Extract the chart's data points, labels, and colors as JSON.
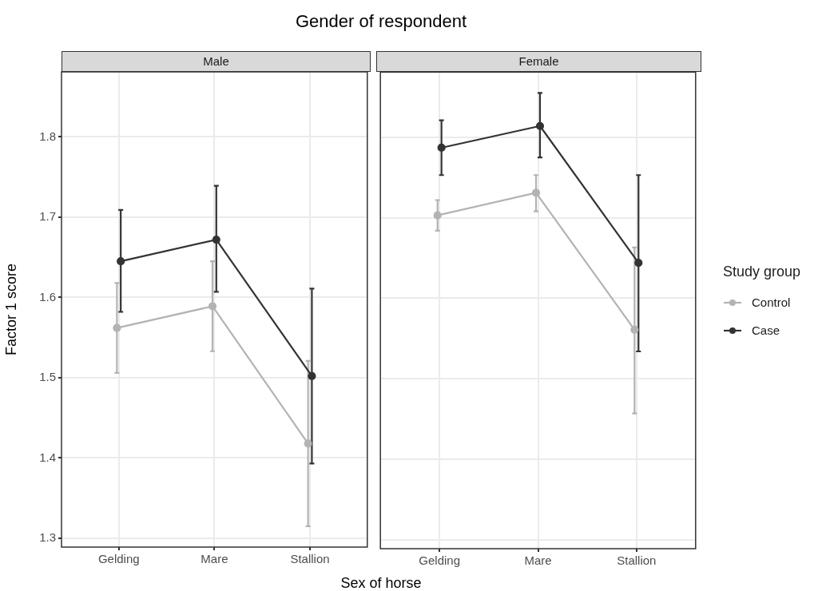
{
  "chart_data": [
    {
      "type": "line",
      "title": "Male",
      "annotations": [
        "Gender of respondent"
      ],
      "xlabel": "Sex of horse",
      "ylabel": "Factor 1 score",
      "categories": [
        "Gelding",
        "Mare",
        "Stallion"
      ],
      "series": [
        {
          "color": "#b3b3b3",
          "values": [
            1.562,
            1.589,
            1.418
          ],
          "errors": [
            [
              1.506,
              1.618
            ],
            [
              1.533,
              1.645
            ],
            [
              1.315,
              1.521
            ]
          ]
        },
        {
          "color": "#333333",
          "values": [
            1.645,
            1.672,
            1.502
          ],
          "errors": [
            [
              1.582,
              1.709
            ],
            [
              1.607,
              1.739
            ],
            [
              1.393,
              1.611
            ]
          ]
        }
      ],
      "ylim": [
        1.289,
        1.881
      ],
      "yticks": [
        1.3,
        1.4,
        1.5,
        1.6,
        1.7,
        1.8
      ],
      "grid": true,
      "marker": "circle",
      "line_style": "solid",
      "legend": false
    },
    {
      "type": "line",
      "title": "Female",
      "legend_title": "Study group",
      "categories": [
        "Gelding",
        "Mare",
        "Stallion"
      ],
      "series": [
        {
          "name": "Control",
          "color": "#b3b3b3",
          "values": [
            1.703,
            1.731,
            1.561
          ],
          "errors": [
            [
              1.684,
              1.722
            ],
            [
              1.708,
              1.753
            ],
            [
              1.457,
              1.663
            ]
          ]
        },
        {
          "name": "Case",
          "color": "#333333",
          "values": [
            1.787,
            1.814,
            1.644
          ],
          "errors": [
            [
              1.753,
              1.821
            ],
            [
              1.775,
              1.855
            ],
            [
              1.534,
              1.753
            ]
          ]
        }
      ],
      "ylim": [
        1.289,
        1.881
      ],
      "yticks": [
        1.3,
        1.4,
        1.5,
        1.6,
        1.7,
        1.8
      ],
      "grid": true,
      "marker": "circle",
      "line_style": "solid",
      "legend": "right",
      "tick_labels": "x"
    }
  ]
}
